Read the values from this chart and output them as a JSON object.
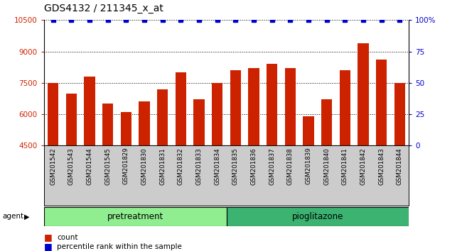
{
  "title": "GDS4132 / 211345_x_at",
  "samples": [
    "GSM201542",
    "GSM201543",
    "GSM201544",
    "GSM201545",
    "GSM201829",
    "GSM201830",
    "GSM201831",
    "GSM201832",
    "GSM201833",
    "GSM201834",
    "GSM201835",
    "GSM201836",
    "GSM201837",
    "GSM201838",
    "GSM201839",
    "GSM201840",
    "GSM201841",
    "GSM201842",
    "GSM201843",
    "GSM201844"
  ],
  "values": [
    7500,
    7000,
    7800,
    6500,
    6100,
    6600,
    7200,
    8000,
    6700,
    7500,
    8100,
    8200,
    8400,
    8200,
    5900,
    6700,
    8100,
    9400,
    8600,
    7500
  ],
  "percentile_values": [
    100,
    100,
    100,
    100,
    100,
    100,
    100,
    100,
    100,
    100,
    100,
    100,
    100,
    100,
    100,
    100,
    100,
    100,
    100,
    100
  ],
  "bar_color": "#cc2200",
  "percentile_color": "#0000cc",
  "ylim_left": [
    4500,
    10500
  ],
  "ylim_right": [
    0,
    100
  ],
  "yticks_left": [
    4500,
    6000,
    7500,
    9000,
    10500
  ],
  "yticks_right": [
    0,
    25,
    50,
    75,
    100
  ],
  "ytick_labels_right": [
    "0",
    "25",
    "50",
    "75",
    "100%"
  ],
  "pretreatment_count": 10,
  "pioglitazone_count": 10,
  "pretreatment_color": "#90ee90",
  "pioglitazone_color": "#3cb371",
  "agent_label": "agent",
  "pretreatment_label": "pretreatment",
  "pioglitazone_label": "pioglitazone",
  "legend_count_label": "count",
  "legend_pct_label": "percentile rank within the sample",
  "title_color": "#000000",
  "left_tick_color": "#cc2200",
  "right_tick_color": "#0000cc",
  "plot_bg_color": "#ffffff",
  "xlabel_area_color": "#cccccc"
}
